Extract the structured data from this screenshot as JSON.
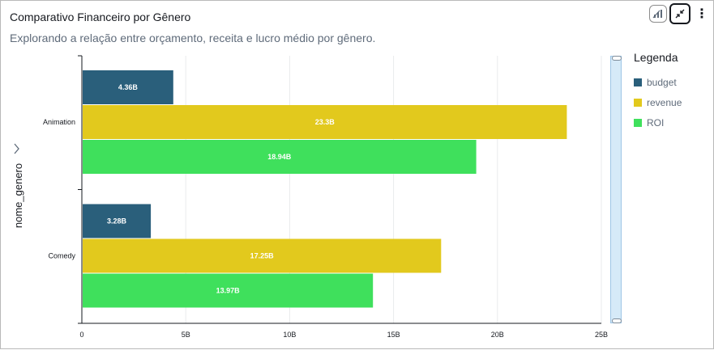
{
  "header": {
    "title": "Comparativo Financeiro por Gênero",
    "subtitle": "Explorando a relação entre orçamento, receita e lucro médio por gênero."
  },
  "toolbar": {
    "icons": [
      "visual-type-icon",
      "collapse-icon",
      "more-options-icon"
    ],
    "more_glyph": "⋮"
  },
  "legend": {
    "title": "Legenda"
  },
  "chart_data": {
    "type": "bar",
    "orientation": "horizontal",
    "title": "",
    "ylabel": "nome_genero",
    "xlabel": "",
    "categories": [
      "Animation",
      "Comedy"
    ],
    "series": [
      {
        "name": "budget",
        "color": "#2a5f7b",
        "values": [
          4.36,
          3.28
        ],
        "labels": [
          "4.36B",
          "3.28B"
        ]
      },
      {
        "name": "revenue",
        "color": "#e2c91d",
        "values": [
          23.3,
          17.25
        ],
        "labels": [
          "23.3B",
          "17.25B"
        ]
      },
      {
        "name": "ROI",
        "color": "#3fe05c",
        "values": [
          18.94,
          13.97
        ],
        "labels": [
          "18.94B",
          "13.97B"
        ]
      }
    ],
    "x_ticks": [
      0,
      5,
      10,
      15,
      20,
      25
    ],
    "x_tick_labels": [
      "0",
      "5B",
      "10B",
      "15B",
      "20B",
      "25B"
    ],
    "xlim": [
      0,
      25
    ],
    "grid": true,
    "legend_position": "right"
  }
}
